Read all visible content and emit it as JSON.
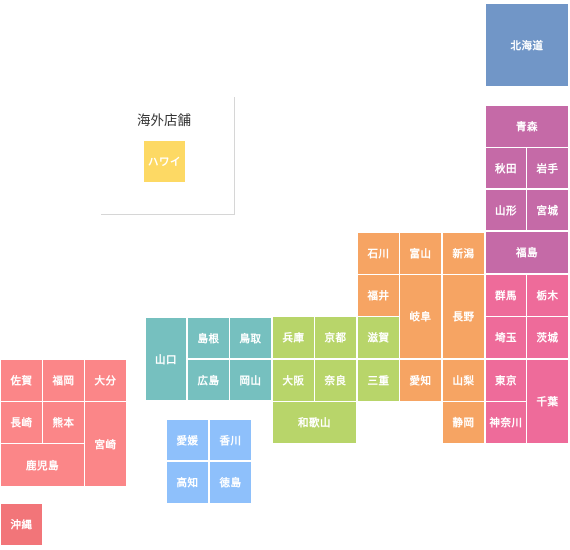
{
  "colors": {
    "hokkaido": "#7196c7",
    "tohoku": "#c56aa7",
    "kanto": "#ee6b9a",
    "chubu": "#f6a463",
    "kinki": "#b8d56a",
    "chugoku": "#76c0bf",
    "shikoku": "#8ec0fb",
    "kyushu": "#fb8688",
    "okinawa": "#f27579",
    "overseas": "#fdd964"
  },
  "overseas": {
    "title": "海外店舗",
    "hawaii": "ハワイ"
  },
  "prefectures": {
    "hokkaido": "北海道",
    "aomori": "青森",
    "akita": "秋田",
    "iwate": "岩手",
    "yamagata": "山形",
    "miyagi": "宮城",
    "fukushima": "福島",
    "gunma": "群馬",
    "tochigi": "栃木",
    "saitama": "埼玉",
    "ibaraki": "茨城",
    "tokyo": "東京",
    "chiba": "千葉",
    "kanagawa": "神奈川",
    "ishikawa": "石川",
    "toyama": "富山",
    "niigata": "新潟",
    "fukui": "福井",
    "gifu": "岐阜",
    "nagano": "長野",
    "aichi": "愛知",
    "yamanashi": "山梨",
    "shizuoka": "静岡",
    "shiga": "滋賀",
    "mie": "三重",
    "hyogo": "兵庫",
    "kyoto": "京都",
    "osaka": "大阪",
    "nara": "奈良",
    "wakayama": "和歌山",
    "yamaguchi": "山口",
    "shimane": "島根",
    "tottori": "鳥取",
    "hiroshima": "広島",
    "okayama": "岡山",
    "ehime": "愛媛",
    "kagawa": "香川",
    "kochi": "高知",
    "tokushima": "徳島",
    "saga": "佐賀",
    "fukuoka": "福岡",
    "oita": "大分",
    "nagasaki": "長崎",
    "kumamoto": "熊本",
    "miyazaki": "宮崎",
    "kagoshima": "鹿児島",
    "okinawa": "沖縄"
  }
}
